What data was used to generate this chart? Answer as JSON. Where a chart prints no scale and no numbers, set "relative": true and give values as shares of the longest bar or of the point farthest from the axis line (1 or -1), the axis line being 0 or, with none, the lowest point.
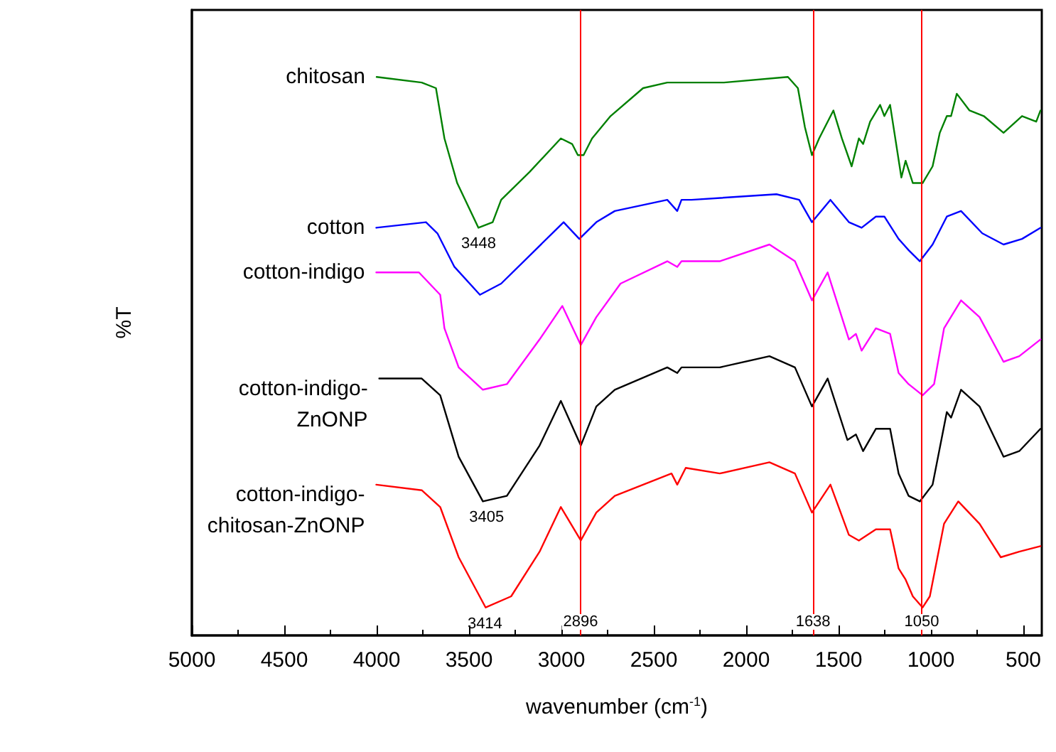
{
  "chart_data": {
    "type": "line",
    "relative": true,
    "xlabel": "wavenumber (cm$^{-1}$)",
    "ylabel": "%T",
    "xlim": [
      5000,
      400
    ],
    "xticks": [
      5000,
      4500,
      4000,
      3500,
      3000,
      2500,
      2000,
      1500,
      1000,
      500
    ],
    "legend": false,
    "grid": false,
    "marker": "none",
    "line_style": "solid",
    "series": [
      {
        "name": "chitosan",
        "color": "#008000",
        "x": [
          4000,
          3756,
          3679,
          3633,
          3564,
          3449,
          3372,
          3326,
          3172,
          3003,
          2942,
          2911,
          2880,
          2834,
          2734,
          2558,
          2427,
          2120,
          1774,
          1720,
          1682,
          1644,
          1605,
          1528,
          1482,
          1429,
          1390,
          1367,
          1329,
          1275,
          1252,
          1221,
          1160,
          1137,
          1098,
          1045,
          991,
          952,
          914,
          891,
          860,
          791,
          714,
          607,
          507,
          430,
          407
        ],
        "values": [
          1.0,
          0.99,
          0.98,
          0.89,
          0.81,
          0.73,
          0.74,
          0.78,
          0.83,
          0.89,
          0.88,
          0.86,
          0.86,
          0.89,
          0.93,
          0.98,
          0.99,
          0.99,
          1.0,
          0.98,
          0.91,
          0.86,
          0.89,
          0.94,
          0.89,
          0.84,
          0.89,
          0.88,
          0.92,
          0.95,
          0.93,
          0.95,
          0.82,
          0.85,
          0.81,
          0.81,
          0.84,
          0.9,
          0.93,
          0.93,
          0.97,
          0.94,
          0.93,
          0.9,
          0.93,
          0.92,
          0.94
        ]
      },
      {
        "name": "cotton",
        "color": "#0000ff",
        "x": [
          4002,
          3733,
          3671,
          3579,
          3441,
          3326,
          2988,
          2903,
          2811,
          2711,
          2427,
          2373,
          2350,
          2296,
          1836,
          1713,
          1644,
          1544,
          1444,
          1375,
          1298,
          1252,
          1175,
          1121,
          1060,
          991,
          914,
          837,
          722,
          607,
          507,
          407
        ],
        "values": [
          0.73,
          0.74,
          0.72,
          0.66,
          0.61,
          0.63,
          0.74,
          0.71,
          0.74,
          0.76,
          0.78,
          0.76,
          0.78,
          0.78,
          0.79,
          0.78,
          0.74,
          0.78,
          0.74,
          0.73,
          0.75,
          0.75,
          0.71,
          0.69,
          0.67,
          0.7,
          0.75,
          0.76,
          0.72,
          0.7,
          0.71,
          0.73
        ]
      },
      {
        "name": "cotton-indigo",
        "color": "#ff00ff",
        "x": [
          4002,
          3771,
          3656,
          3633,
          3556,
          3425,
          3295,
          3118,
          2995,
          2895,
          2811,
          2680,
          2427,
          2373,
          2350,
          2143,
          1874,
          1736,
          1644,
          1559,
          1444,
          1406,
          1375,
          1298,
          1221,
          1175,
          1121,
          1045,
          983,
          929,
          837,
          737,
          607,
          522,
          407
        ],
        "values": [
          0.65,
          0.65,
          0.61,
          0.55,
          0.48,
          0.44,
          0.45,
          0.53,
          0.59,
          0.52,
          0.57,
          0.63,
          0.67,
          0.66,
          0.67,
          0.67,
          0.7,
          0.67,
          0.6,
          0.65,
          0.53,
          0.54,
          0.51,
          0.55,
          0.54,
          0.47,
          0.45,
          0.43,
          0.45,
          0.55,
          0.6,
          0.57,
          0.49,
          0.5,
          0.53
        ]
      },
      {
        "name": "cotton-indigo-ZnONP",
        "color": "#000000",
        "x": [
          3986,
          3756,
          3656,
          3556,
          3425,
          3295,
          3118,
          3003,
          2895,
          2811,
          2711,
          2427,
          2373,
          2350,
          2143,
          1874,
          1736,
          1644,
          1559,
          1452,
          1406,
          1367,
          1298,
          1221,
          1175,
          1121,
          1060,
          991,
          914,
          891,
          837,
          737,
          607,
          522,
          407
        ],
        "values": [
          0.46,
          0.46,
          0.43,
          0.32,
          0.24,
          0.25,
          0.34,
          0.42,
          0.34,
          0.41,
          0.44,
          0.48,
          0.47,
          0.48,
          0.48,
          0.5,
          0.48,
          0.41,
          0.46,
          0.35,
          0.36,
          0.33,
          0.37,
          0.37,
          0.29,
          0.25,
          0.24,
          0.27,
          0.4,
          0.39,
          0.44,
          0.41,
          0.32,
          0.33,
          0.37
        ]
      },
      {
        "name": "cotton-indigo-chitosan-ZnONP",
        "color": "#ff0000",
        "x": [
          4002,
          3756,
          3656,
          3556,
          3410,
          3272,
          3118,
          3003,
          2895,
          2811,
          2711,
          2404,
          2373,
          2327,
          2143,
          1874,
          1736,
          1644,
          1544,
          1444,
          1390,
          1298,
          1221,
          1175,
          1137,
          1098,
          1045,
          1006,
          929,
          852,
          737,
          622,
          522,
          407
        ],
        "values": [
          0.27,
          0.26,
          0.23,
          0.14,
          0.05,
          0.07,
          0.15,
          0.23,
          0.17,
          0.22,
          0.25,
          0.29,
          0.27,
          0.3,
          0.29,
          0.31,
          0.29,
          0.22,
          0.27,
          0.18,
          0.17,
          0.19,
          0.19,
          0.12,
          0.1,
          0.07,
          0.05,
          0.07,
          0.2,
          0.24,
          0.2,
          0.14,
          0.15,
          0.16
        ]
      }
    ],
    "ref_lines": [
      {
        "axis": "x",
        "value": 2896,
        "label": "2896",
        "color": "#ff0000",
        "line_style": "solid"
      },
      {
        "axis": "x",
        "value": 1638,
        "label": "1638",
        "color": "#ff0000",
        "line_style": "solid"
      },
      {
        "axis": "x",
        "value": 1050,
        "label": "1050",
        "color": "#ff0000",
        "line_style": "solid"
      }
    ],
    "annotations": [
      {
        "text": "3448",
        "x": 3448,
        "y": 0.73
      },
      {
        "text": "3405",
        "x": 3405,
        "y": 0.24
      },
      {
        "text": "3414",
        "x": 3414,
        "y": 0.05
      }
    ]
  }
}
